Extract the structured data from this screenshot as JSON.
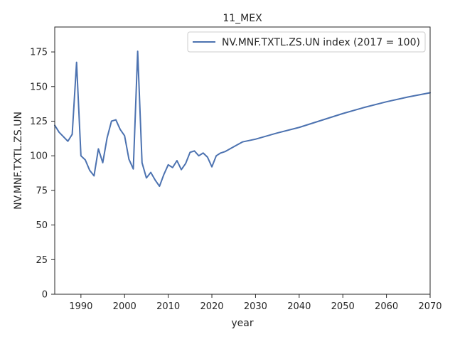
{
  "chart_data": {
    "type": "line",
    "title": "11_MEX",
    "xlabel": "year",
    "ylabel": "NV.MNF.TXTL.ZS.UN",
    "xlim": [
      1984,
      2070
    ],
    "ylim": [
      0,
      193
    ],
    "xticks": [
      1990,
      2000,
      2010,
      2020,
      2030,
      2040,
      2050,
      2060,
      2070
    ],
    "yticks": [
      0,
      25,
      50,
      75,
      100,
      125,
      150,
      175
    ],
    "grid": false,
    "legend_position": "upper right",
    "series": [
      {
        "name": "NV.MNF.TXTL.ZS.UN index (2017 = 100)",
        "color": "#4c72b0",
        "x": [
          1984,
          1985,
          1987,
          1988,
          1989,
          1990,
          1991,
          1992,
          1993,
          1994,
          1995,
          1996,
          1997,
          1998,
          1999,
          2000,
          2001,
          2002,
          2003,
          2004,
          2005,
          2006,
          2007,
          2008,
          2009,
          2010,
          2011,
          2012,
          2013,
          2014,
          2015,
          2016,
          2017,
          2018,
          2019,
          2020,
          2021,
          2022,
          2023,
          2025,
          2027,
          2030,
          2035,
          2040,
          2045,
          2050,
          2055,
          2060,
          2065,
          2070
        ],
        "y": [
          122,
          117,
          110.5,
          115.5,
          167.5,
          100,
          97,
          89.5,
          85.5,
          105,
          95,
          113,
          125,
          126,
          119,
          114.5,
          97.5,
          90.5,
          175.5,
          95,
          84,
          88,
          82.5,
          78,
          86.5,
          93.5,
          91.5,
          96.5,
          90,
          94.5,
          102.5,
          103.5,
          100,
          102,
          99,
          92,
          100,
          102,
          103,
          106.5,
          110,
          112,
          116.5,
          120.5,
          125.5,
          130.5,
          135,
          139,
          142.5,
          145.5
        ]
      }
    ]
  }
}
